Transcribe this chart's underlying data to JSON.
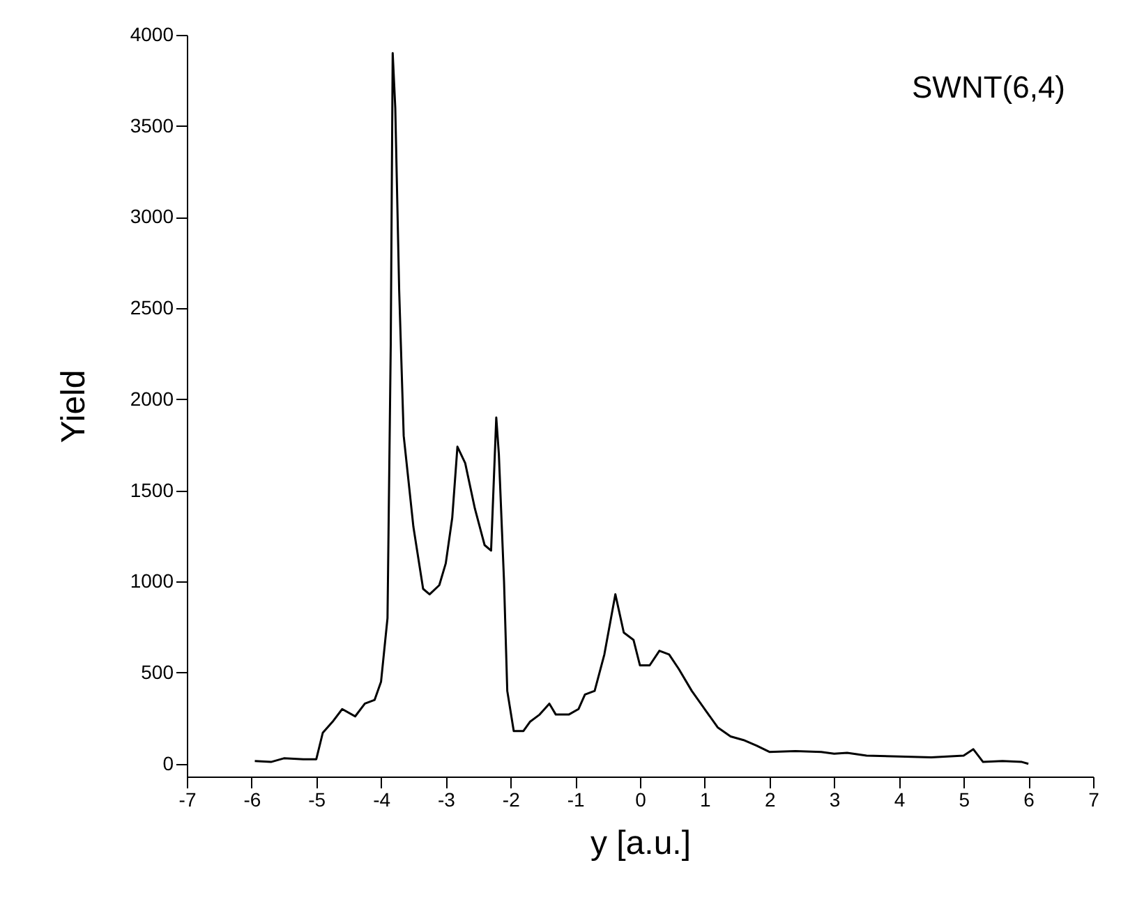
{
  "chart_data": {
    "type": "line",
    "xlabel": "y [a.u.]",
    "ylabel": "Yield",
    "annotations": [
      "SWNT(6,4)"
    ],
    "x": [
      -5.95,
      -5.7,
      -5.5,
      -5.2,
      -5.0,
      -4.9,
      -4.75,
      -4.6,
      -4.4,
      -4.25,
      -4.1,
      -4.0,
      -3.9,
      -3.85,
      -3.82,
      -3.78,
      -3.72,
      -3.65,
      -3.5,
      -3.35,
      -3.25,
      -3.1,
      -3.0,
      -2.9,
      -2.82,
      -2.7,
      -2.55,
      -2.4,
      -2.3,
      -2.22,
      -2.18,
      -2.1,
      -2.05,
      -1.95,
      -1.8,
      -1.7,
      -1.55,
      -1.4,
      -1.3,
      -1.1,
      -0.95,
      -0.85,
      -0.7,
      -0.55,
      -0.38,
      -0.25,
      -0.1,
      0.0,
      0.15,
      0.3,
      0.45,
      0.6,
      0.8,
      1.0,
      1.2,
      1.4,
      1.6,
      1.8,
      2.0,
      2.4,
      2.8,
      3.0,
      3.2,
      3.5,
      4.0,
      4.5,
      5.0,
      5.15,
      5.3,
      5.6,
      5.9,
      6.0
    ],
    "series": [
      {
        "color": "#000000",
        "values": [
          15,
          10,
          30,
          25,
          25,
          170,
          230,
          300,
          260,
          330,
          350,
          450,
          800,
          2300,
          3900,
          3600,
          2600,
          1800,
          1300,
          960,
          930,
          980,
          1100,
          1350,
          1740,
          1650,
          1400,
          1200,
          1170,
          1900,
          1700,
          1000,
          400,
          180,
          180,
          230,
          270,
          330,
          270,
          270,
          300,
          380,
          400,
          600,
          930,
          720,
          680,
          540,
          540,
          620,
          600,
          520,
          400,
          300,
          200,
          150,
          130,
          100,
          65,
          70,
          65,
          55,
          60,
          45,
          40,
          35,
          45,
          80,
          10,
          15,
          10,
          0
        ]
      }
    ],
    "xlim": [
      -7,
      7
    ],
    "xticks": [
      -7,
      -6,
      -5,
      -4,
      -3,
      -2,
      -1,
      0,
      1,
      2,
      3,
      4,
      5,
      6,
      7
    ],
    "ylim": [
      -70,
      4000
    ],
    "yticks": [
      0,
      500,
      1000,
      1500,
      2000,
      2500,
      3000,
      3500,
      4000
    ],
    "grid": false,
    "legend": false
  }
}
